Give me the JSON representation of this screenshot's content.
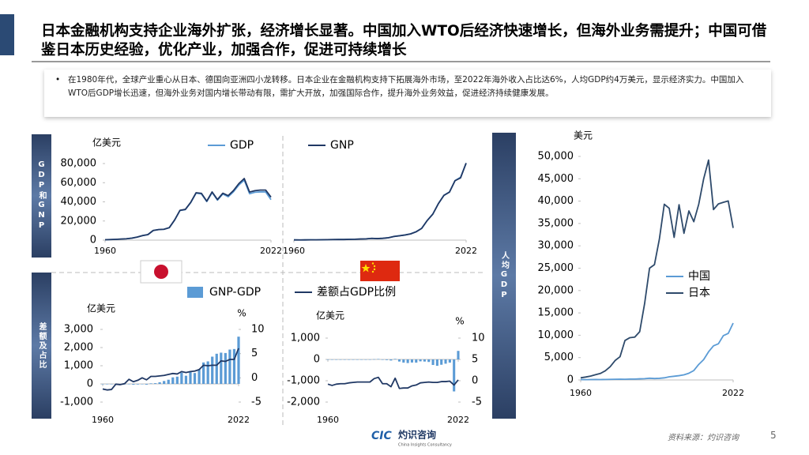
{
  "header": {
    "title": "日本金融机构支持企业海外扩张，经济增长显著。中国加入WTO后经济快速增长，但海外业务需提升；中国可借鉴日本历史经验，优化产业，加强合作，促进可持续增长"
  },
  "summary": {
    "bullet": "在1980年代，全球产业重心从日本、德国向亚洲四小龙转移。日本企业在金融机构支持下拓展海外市场，至2022年海外收入占比达6%，人均GDP约4万美元，显示经济实力。中国加入WTO后GDP增长迅速，但海外业务对国内增长带动有限，需扩大开放，加强国际合作，提升海外业务效益，促进经济持续健康发展。"
  },
  "section_labels": [
    "GDP和GNP",
    "差额及占比",
    "人均GDP"
  ],
  "chart_data": [
    {
      "type": "line",
      "y_label": "亿美元",
      "x": [
        1960,
        1962,
        1964,
        1966,
        1968,
        1970,
        1972,
        1974,
        1976,
        1978,
        1980,
        1982,
        1984,
        1986,
        1988,
        1990,
        1992,
        1994,
        1996,
        1998,
        2000,
        2002,
        2004,
        2006,
        2008,
        2010,
        2012,
        2014,
        2016,
        2018,
        2020,
        2022
      ],
      "xlim": [
        1960,
        2022
      ],
      "xticks": [
        1960,
        2022
      ],
      "ylim": [
        0,
        85000
      ],
      "yticks": [
        0,
        {
          "value": 20000,
          "label": "20,000"
        },
        {
          "value": 40000,
          "label": "40,000"
        },
        {
          "value": 60000,
          "label": "60,000"
        },
        {
          "value": 80000,
          "label": "80,000"
        }
      ],
      "series": [
        {
          "name": "GDP",
          "color": "#5b9bd5",
          "values": [
            443,
            610,
            820,
            1130,
            1460,
            2120,
            3180,
            4800,
            5790,
            10100,
            11050,
            11340,
            13000,
            21000,
            31000,
            31900,
            39100,
            49100,
            48300,
            40300,
            49700,
            41800,
            48200,
            45300,
            50600,
            57600,
            62700,
            48500,
            50000,
            50400,
            50400,
            42300
          ]
        },
        {
          "name": "GNP",
          "color": "#203864",
          "values": [
            433,
            595,
            800,
            1115,
            1440,
            2095,
            3170,
            4760,
            5760,
            10100,
            11010,
            11370,
            13040,
            21090,
            31160,
            32130,
            39460,
            49500,
            48920,
            40750,
            50350,
            42400,
            49010,
            46480,
            51840,
            59100,
            64360,
            50220,
            51700,
            52290,
            52320,
            44900
          ]
        }
      ]
    },
    {
      "type": "line",
      "x": [
        1960,
        1962,
        1964,
        1966,
        1968,
        1970,
        1972,
        1974,
        1976,
        1978,
        1980,
        1982,
        1984,
        1986,
        1988,
        1990,
        1992,
        1994,
        1996,
        1998,
        2000,
        2002,
        2004,
        2006,
        2008,
        2010,
        2012,
        2014,
        2016,
        2018,
        2020,
        2022
      ],
      "xlim": [
        1960,
        2022
      ],
      "xticks": [
        1960,
        2022
      ],
      "ylim": [
        0,
        190000
      ],
      "series": [
        {
          "color": "#5b9bd5",
          "values": [
            597,
            472,
            593,
            767,
            707,
            926,
            1137,
            1442,
            1539,
            1495,
            1911,
            2050,
            2598,
            2952,
            4124,
            3609,
            4269,
            5643,
            8637,
            10290,
            12113,
            14705,
            19553,
            27521,
            45944,
            60871,
            85321,
            104757,
            112333,
            138949,
            146877,
            179632
          ]
        },
        {
          "color": "#203864",
          "values": [
            592,
            467,
            588,
            762,
            702,
            921,
            1132,
            1437,
            1534,
            1490,
            1906,
            2060,
            2618,
            2932,
            4094,
            3559,
            4294,
            5543,
            8487,
            10120,
            11968,
            14555,
            19463,
            27421,
            45824,
            60611,
            85021,
            104507,
            112133,
            138799,
            145377,
            180032
          ]
        }
      ]
    },
    {
      "type": "combo",
      "y_label": "亿美元",
      "y2_label": "%",
      "x": [
        1960,
        1962,
        1964,
        1966,
        1968,
        1970,
        1972,
        1974,
        1976,
        1978,
        1980,
        1982,
        1984,
        1986,
        1988,
        1990,
        1992,
        1994,
        1996,
        1998,
        2000,
        2002,
        2004,
        2006,
        2008,
        2010,
        2012,
        2014,
        2016,
        2018,
        2020,
        2022
      ],
      "xlim": [
        1960,
        2022
      ],
      "xticks": [
        1960,
        2022
      ],
      "ylim": [
        -1000,
        3000
      ],
      "yticks": [
        {
          "value": -1000,
          "label": "-1,000"
        },
        0,
        {
          "value": 1000,
          "label": "1,000"
        },
        {
          "value": 2000,
          "label": "2,000"
        },
        {
          "value": 3000,
          "label": "3,000"
        }
      ],
      "y2lim": [
        -5,
        10
      ],
      "y2ticks": [
        -5,
        0,
        5,
        10
      ],
      "series": [
        {
          "name": "GNP-GDP",
          "type": "bar",
          "color": "#5b9bd5",
          "values": [
            -10,
            -15,
            -20,
            -15,
            -20,
            -25,
            -10,
            -40,
            -30,
            0,
            -40,
            30,
            40,
            90,
            160,
            230,
            360,
            400,
            620,
            450,
            650,
            600,
            810,
            1180,
            1240,
            1500,
            1660,
            1720,
            1700,
            1890,
            1920,
            2600
          ]
        },
        {
          "name": "差额占GDP比例",
          "type": "line",
          "axis": "y2",
          "color": "#203864",
          "values": [
            -2.3,
            -2.5,
            -2.4,
            -1.3,
            -1.4,
            -1.2,
            -0.3,
            -0.8,
            -0.5,
            0,
            -0.4,
            0.3,
            0.3,
            0.4,
            0.5,
            0.7,
            0.9,
            0.8,
            1.3,
            1.1,
            1.3,
            1.4,
            1.7,
            2.6,
            2.5,
            2.6,
            2.6,
            3.5,
            3.4,
            3.8,
            3.8,
            6.1
          ]
        }
      ]
    },
    {
      "type": "combo",
      "y_label": "亿美元",
      "y2_label": "%",
      "x": [
        1960,
        1962,
        1964,
        1966,
        1968,
        1970,
        1972,
        1974,
        1976,
        1978,
        1980,
        1982,
        1984,
        1986,
        1988,
        1990,
        1992,
        1994,
        1996,
        1998,
        2000,
        2002,
        2004,
        2006,
        2008,
        2010,
        2012,
        2014,
        2016,
        2018,
        2020,
        2022
      ],
      "xlim": [
        1960,
        2022
      ],
      "xticks": [
        1960,
        2022
      ],
      "ylim": [
        -2000,
        1000
      ],
      "yticks": [
        {
          "value": -2000,
          "label": "-2,000"
        },
        {
          "value": -1000,
          "label": "-1,000"
        },
        0,
        {
          "value": 1000,
          "label": "1,000"
        }
      ],
      "y2lim": [
        -5,
        10
      ],
      "y2ticks": [
        -5,
        0,
        5,
        10
      ],
      "series": [
        {
          "type": "bar",
          "color": "#5b9bd5",
          "values": [
            -5,
            -5,
            -5,
            -5,
            -5,
            -5,
            -5,
            -5,
            -5,
            -5,
            -5,
            10,
            20,
            -20,
            -30,
            -50,
            25,
            -100,
            -150,
            -170,
            -145,
            -150,
            -90,
            -100,
            -120,
            -260,
            -300,
            -250,
            -200,
            -150,
            -1500,
            400
          ]
        },
        {
          "type": "line",
          "axis": "y2",
          "color": "#203864",
          "values": [
            -0.8,
            -1.1,
            -0.8,
            -0.7,
            -0.7,
            -0.5,
            -0.4,
            -0.3,
            -0.3,
            -0.3,
            -0.3,
            0.5,
            0.8,
            -0.7,
            -0.7,
            -1.4,
            0.6,
            -1.8,
            -1.7,
            -1.7,
            -1.2,
            -1.0,
            -0.5,
            -0.4,
            -0.3,
            -0.4,
            -0.4,
            -0.2,
            -0.2,
            -0.1,
            -1.0,
            0.2
          ]
        }
      ]
    },
    {
      "type": "line",
      "y_label": "美元",
      "x": [
        1960,
        1962,
        1964,
        1966,
        1968,
        1970,
        1972,
        1974,
        1976,
        1978,
        1980,
        1982,
        1984,
        1986,
        1988,
        1990,
        1992,
        1994,
        1996,
        1998,
        2000,
        2002,
        2004,
        2006,
        2008,
        2010,
        2012,
        2014,
        2016,
        2018,
        2020,
        2022
      ],
      "xlim": [
        1960,
        2022
      ],
      "xticks": [
        1960,
        2022
      ],
      "ylim": [
        0,
        50000
      ],
      "yticks": [
        0,
        {
          "value": 5000,
          "label": "5,000"
        },
        {
          "value": 10000,
          "label": "10,000"
        },
        {
          "value": 15000,
          "label": "15,000"
        },
        {
          "value": 20000,
          "label": "20,000"
        },
        {
          "value": 25000,
          "label": "25,000"
        },
        {
          "value": 30000,
          "label": "30,000"
        },
        {
          "value": 35000,
          "label": "35,000"
        },
        {
          "value": 40000,
          "label": "40,000"
        },
        {
          "value": 45000,
          "label": "45,000"
        },
        {
          "value": 50000,
          "label": "50,000"
        }
      ],
      "series": [
        {
          "name": "中国",
          "color": "#5b9bd5",
          "values": [
            90,
            70,
            85,
            100,
            90,
            113,
            132,
            157,
            165,
            156,
            195,
            203,
            251,
            282,
            384,
            318,
            366,
            473,
            709,
            829,
            959,
            1149,
            1509,
            2099,
            3468,
            4550,
            6301,
            7636,
            8094,
            9905,
            10409,
            12720
          ]
        },
        {
          "name": "日本",
          "color": "#2e4a6b",
          "values": [
            475,
            650,
            860,
            1160,
            1450,
            2040,
            2970,
            4350,
            5200,
            8820,
            9460,
            9580,
            10800,
            17100,
            25000,
            25800,
            31500,
            39300,
            38400,
            31900,
            39200,
            32800,
            37800,
            35400,
            39300,
            44970,
            49180,
            38110,
            39380,
            39730,
            40040,
            34000
          ]
        }
      ]
    }
  ],
  "footer": {
    "source": "资料来源：灼识咨询",
    "page": "5",
    "logo_mark": "CIC",
    "logo_name": "灼识咨询",
    "logo_subtitle": "China Insights Consultancy"
  }
}
